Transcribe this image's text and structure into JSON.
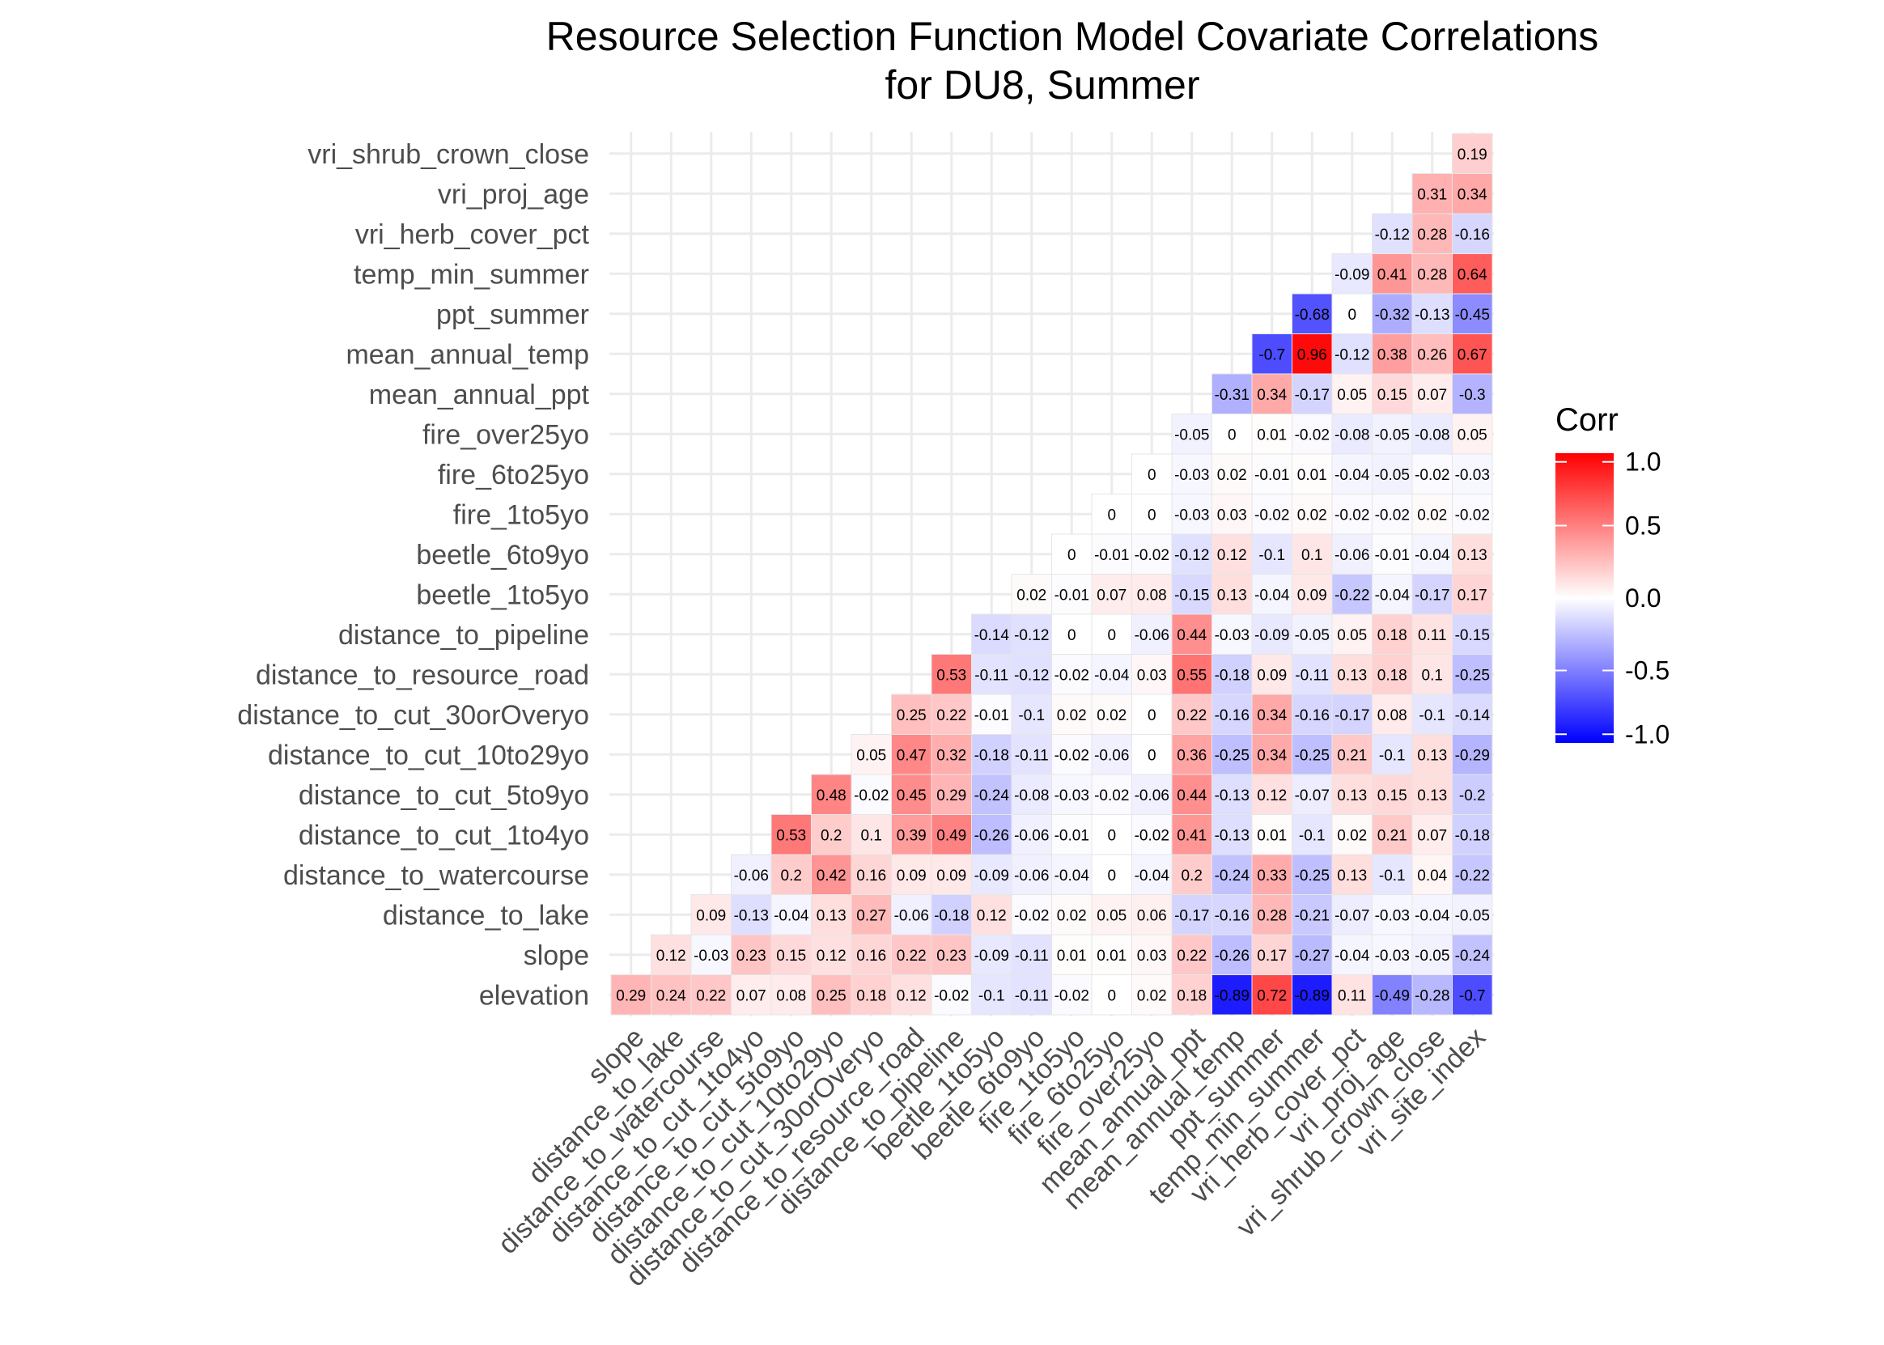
{
  "chart_data": {
    "type": "heatmap",
    "title": "Resource Selection Function Model Covariate Correlations",
    "subtitle": "for DU8, Summer",
    "xlabel": "",
    "ylabel": "",
    "row_labels": [
      "elevation",
      "slope",
      "distance_to_lake",
      "distance_to_watercourse",
      "distance_to_cut_1to4yo",
      "distance_to_cut_5to9yo",
      "distance_to_cut_10to29yo",
      "distance_to_cut_30orOveryo",
      "distance_to_resource_road",
      "distance_to_pipeline",
      "beetle_1to5yo",
      "beetle_6to9yo",
      "fire_1to5yo",
      "fire_6to25yo",
      "fire_over25yo",
      "mean_annual_ppt",
      "mean_annual_temp",
      "ppt_summer",
      "temp_min_summer",
      "vri_herb_cover_pct",
      "vri_proj_age",
      "vri_shrub_crown_close"
    ],
    "col_labels": [
      "slope",
      "distance_to_lake",
      "distance_to_watercourse",
      "distance_to_cut_1to4yo",
      "distance_to_cut_5to9yo",
      "distance_to_cut_10to29yo",
      "distance_to_cut_30orOveryo",
      "distance_to_resource_road",
      "distance_to_pipeline",
      "beetle_1to5yo",
      "beetle_6to9yo",
      "fire_1to5yo",
      "fire_6to25yo",
      "fire_over25yo",
      "mean_annual_ppt",
      "mean_annual_temp",
      "ppt_summer",
      "temp_min_summer",
      "vri_herb_cover_pct",
      "vri_proj_age",
      "vri_shrub_crown_close",
      "vri_site_index"
    ],
    "values": [
      [
        0.29,
        0.24,
        0.22,
        0.07,
        0.08,
        0.25,
        0.18,
        0.12,
        -0.02,
        -0.1,
        -0.11,
        -0.02,
        0,
        0.02,
        0.18,
        -0.89,
        0.72,
        -0.89,
        0.11,
        -0.49,
        -0.28,
        -0.7
      ],
      [
        0.12,
        -0.03,
        0.23,
        0.15,
        0.12,
        0.16,
        0.22,
        0.23,
        -0.09,
        -0.11,
        0.01,
        0.01,
        0.03,
        0.22,
        -0.26,
        0.17,
        -0.27,
        -0.04,
        -0.03,
        -0.05,
        -0.24
      ],
      [
        0.09,
        -0.13,
        -0.04,
        0.13,
        0.27,
        -0.06,
        -0.18,
        0.12,
        -0.02,
        0.02,
        0.05,
        0.06,
        -0.17,
        -0.16,
        0.28,
        -0.21,
        -0.07,
        -0.03,
        -0.04,
        -0.05
      ],
      [
        -0.06,
        0.2,
        0.42,
        0.16,
        0.09,
        0.09,
        -0.09,
        -0.06,
        -0.04,
        0,
        -0.04,
        0.2,
        -0.24,
        0.33,
        -0.25,
        0.13,
        -0.1,
        0.04,
        -0.22
      ],
      [
        0.53,
        0.2,
        0.1,
        0.39,
        0.49,
        -0.26,
        -0.06,
        -0.01,
        0,
        -0.02,
        0.41,
        -0.13,
        0.01,
        -0.1,
        0.02,
        0.21,
        0.07,
        -0.18
      ],
      [
        0.48,
        -0.02,
        0.45,
        0.29,
        -0.24,
        -0.08,
        -0.03,
        -0.02,
        -0.06,
        0.44,
        -0.13,
        0.12,
        -0.07,
        0.13,
        0.15,
        0.13,
        -0.2
      ],
      [
        0.05,
        0.47,
        0.32,
        -0.18,
        -0.11,
        -0.02,
        -0.06,
        0,
        0.36,
        -0.25,
        0.34,
        -0.25,
        0.21,
        -0.1,
        0.13,
        -0.29
      ],
      [
        0.25,
        0.22,
        -0.01,
        -0.1,
        0.02,
        0.02,
        0,
        0.22,
        -0.16,
        0.34,
        -0.16,
        -0.17,
        0.08,
        -0.1,
        -0.14
      ],
      [
        0.53,
        -0.11,
        -0.12,
        -0.02,
        -0.04,
        0.03,
        0.55,
        -0.18,
        0.09,
        -0.11,
        0.13,
        0.18,
        0.1,
        -0.25
      ],
      [
        -0.14,
        -0.12,
        0,
        0,
        -0.06,
        0.44,
        -0.03,
        -0.09,
        -0.05,
        0.05,
        0.18,
        0.11,
        -0.15
      ],
      [
        0.02,
        -0.01,
        0.07,
        0.08,
        -0.15,
        0.13,
        -0.04,
        0.09,
        -0.22,
        -0.04,
        -0.17,
        0.17
      ],
      [
        0,
        -0.01,
        -0.02,
        -0.12,
        0.12,
        -0.1,
        0.1,
        -0.06,
        -0.01,
        -0.04,
        0.13
      ],
      [
        0,
        0,
        -0.03,
        0.03,
        -0.02,
        0.02,
        -0.02,
        -0.02,
        0.02,
        -0.02
      ],
      [
        0,
        -0.03,
        0.02,
        -0.01,
        0.01,
        -0.04,
        -0.05,
        -0.02,
        -0.03
      ],
      [
        -0.05,
        0,
        0.01,
        -0.02,
        -0.08,
        -0.05,
        -0.08,
        0.05
      ],
      [
        -0.31,
        0.34,
        -0.17,
        0.05,
        0.15,
        0.07,
        -0.3
      ],
      [
        -0.7,
        0.96,
        -0.12,
        0.38,
        0.26,
        0.67
      ],
      [
        -0.68,
        0,
        -0.32,
        -0.13,
        -0.45
      ],
      [
        -0.09,
        0.41,
        0.28,
        0.64
      ],
      [
        -0.12,
        0.28,
        -0.16
      ],
      [
        0.31,
        0.34
      ],
      [
        0.19
      ]
    ],
    "scale": {
      "min": -1.0,
      "max": 1.0,
      "low_color": "#0000ff",
      "mid_color": "#ffffff",
      "high_color": "#ff0000"
    },
    "legend": {
      "title": "Corr",
      "placement": "right",
      "ticks": [
        "1.0",
        "0.5",
        "0.0",
        "-0.5",
        "-1.0"
      ]
    },
    "grid": true
  }
}
